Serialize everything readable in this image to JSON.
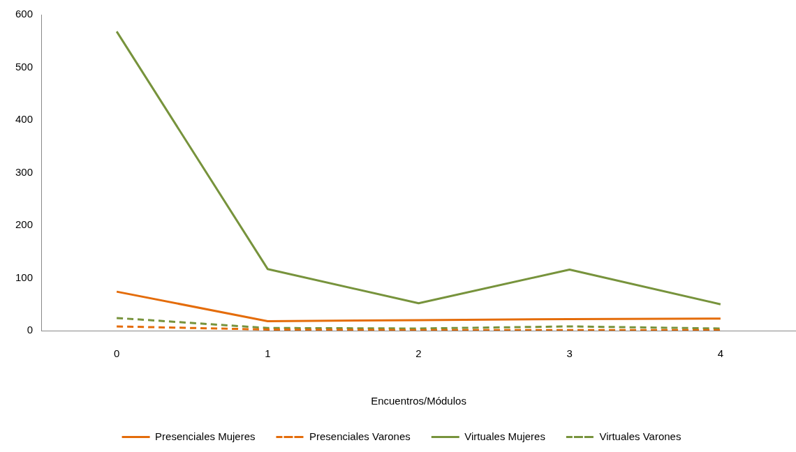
{
  "chart_data": {
    "type": "line",
    "xlabel": "Encuentros/Módulos",
    "categories": [
      "0",
      "1",
      "2",
      "3",
      "4"
    ],
    "series": [
      {
        "name": "Presenciales Mujeres",
        "color": "#e46c0a",
        "line_style": "solid",
        "values": [
          74,
          18,
          20,
          22,
          23
        ]
      },
      {
        "name": "Presenciales Varones",
        "color": "#e46c0a",
        "line_style": "dashed",
        "values": [
          8,
          2,
          1,
          1,
          1
        ]
      },
      {
        "name": "Virtuales Mujeres",
        "color": "#77933c",
        "line_style": "solid",
        "values": [
          568,
          117,
          52,
          116,
          50
        ]
      },
      {
        "name": "Virtuales Varones",
        "color": "#77933c",
        "line_style": "dashed",
        "values": [
          24,
          5,
          4,
          8,
          4
        ]
      }
    ],
    "ylim": [
      0,
      600
    ],
    "yticks": [
      0,
      100,
      200,
      300,
      400,
      500,
      600
    ],
    "grid": false,
    "legend": "bottom",
    "marker": "none"
  }
}
